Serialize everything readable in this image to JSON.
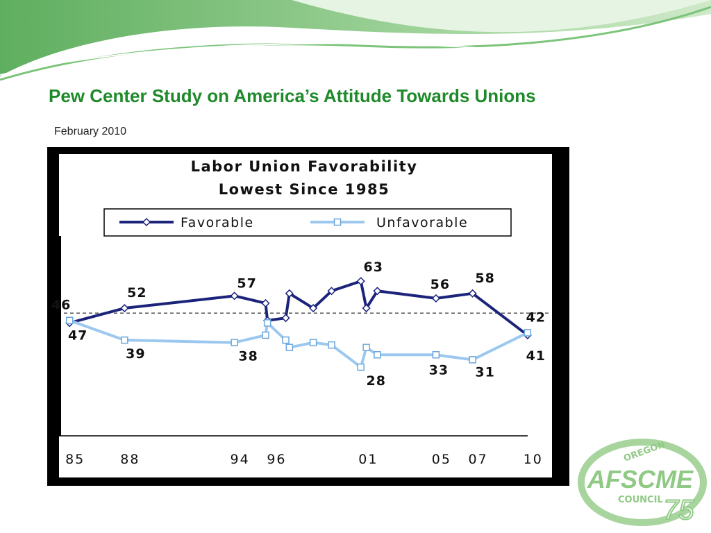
{
  "slide": {
    "title": "Pew Center Study on America’s Attitude Towards Unions",
    "subtitle": "February 2010"
  },
  "logo": {
    "top": "OREGON",
    "name": "AFSCME",
    "bottom": "COUNCIL",
    "number": "75"
  },
  "chart_data": {
    "type": "line",
    "title": "Labor Union Favorability",
    "subtitle": "Lowest Since 1985",
    "x": [
      1985,
      1988,
      1994,
      1995.7,
      1995.8,
      1996.8,
      1997,
      1998.3,
      1999.3,
      2000.9,
      2001.2,
      2001.8,
      2005,
      2007,
      2010
    ],
    "series": [
      {
        "name": "Favorable",
        "color": "#1b237a",
        "marker": "diamond",
        "values": [
          46,
          52,
          57,
          54,
          47,
          48,
          58,
          52,
          59,
          63,
          52,
          59,
          56,
          58,
          41
        ]
      },
      {
        "name": "Unfavorable",
        "color": "#9cc8f0",
        "marker": "square",
        "values": [
          47,
          39,
          38,
          41,
          46,
          39,
          36,
          38,
          37,
          28,
          36,
          33,
          33,
          31,
          42
        ]
      }
    ],
    "reference_line": 50,
    "xlim": [
      1984.5,
      2010.5
    ],
    "xticks": [
      {
        "value": 1985,
        "label": "85"
      },
      {
        "value": 1988,
        "label": "88"
      },
      {
        "value": 1994,
        "label": "94"
      },
      {
        "value": 1996,
        "label": "96"
      },
      {
        "value": 2001,
        "label": "01"
      },
      {
        "value": 2005,
        "label": "05"
      },
      {
        "value": 2007,
        "label": "07"
      },
      {
        "value": 2010,
        "label": "10"
      }
    ],
    "ylim": [
      0,
      80
    ],
    "yticks": [],
    "grid": false,
    "legend": "top"
  }
}
